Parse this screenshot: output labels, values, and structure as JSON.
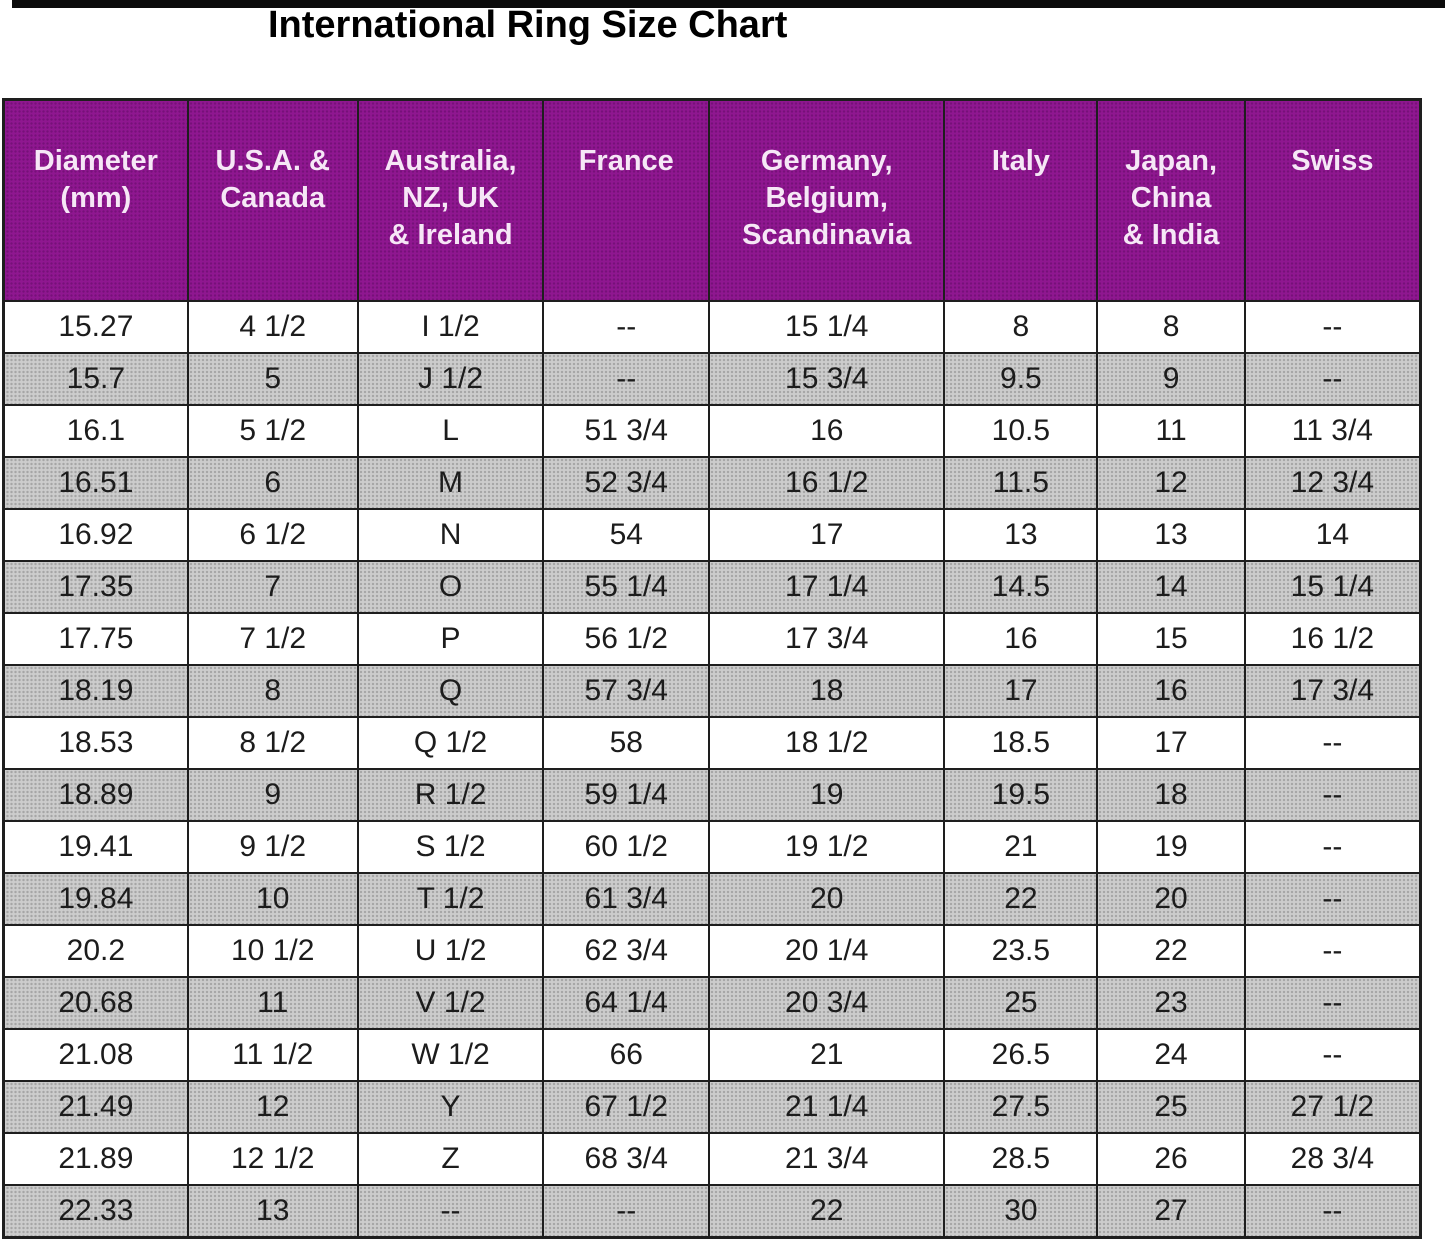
{
  "page": {
    "title": "International Ring Size Chart"
  },
  "colors": {
    "header_bg": "#8f1790",
    "header_text": "#f6e7f6",
    "stripe_bg": "#cccccc",
    "border": "#1e1e1e"
  },
  "table": {
    "columns": [
      {
        "id": "diameter-mm",
        "label": "Diameter\n(mm)"
      },
      {
        "id": "usa-canada",
        "label": "U.S.A. &\nCanada"
      },
      {
        "id": "australia-nz-uk-ireland",
        "label": "Australia,\nNZ, UK\n& Ireland"
      },
      {
        "id": "france",
        "label": "France"
      },
      {
        "id": "germany-belgium-scandinavia",
        "label": "Germany,\nBelgium,\nScandinavia"
      },
      {
        "id": "italy",
        "label": "Italy"
      },
      {
        "id": "japan-china-india",
        "label": "Japan,\nChina\n& India"
      },
      {
        "id": "swiss",
        "label": "Swiss"
      }
    ],
    "rows": [
      [
        "15.27",
        "4 1/2",
        "I 1/2",
        "--",
        "15 1/4",
        "8",
        "8",
        "--"
      ],
      [
        "15.7",
        "5",
        "J 1/2",
        "--",
        "15 3/4",
        "9.5",
        "9",
        "--"
      ],
      [
        "16.1",
        "5 1/2",
        "L",
        "51 3/4",
        "16",
        "10.5",
        "11",
        "11 3/4"
      ],
      [
        "16.51",
        "6",
        "M",
        "52 3/4",
        "16 1/2",
        "11.5",
        "12",
        "12 3/4"
      ],
      [
        "16.92",
        "6 1/2",
        "N",
        "54",
        "17",
        "13",
        "13",
        "14"
      ],
      [
        "17.35",
        "7",
        "O",
        "55 1/4",
        "17 1/4",
        "14.5",
        "14",
        "15 1/4"
      ],
      [
        "17.75",
        "7 1/2",
        "P",
        "56 1/2",
        "17 3/4",
        "16",
        "15",
        "16 1/2"
      ],
      [
        "18.19",
        "8",
        "Q",
        "57 3/4",
        "18",
        "17",
        "16",
        "17 3/4"
      ],
      [
        "18.53",
        "8 1/2",
        "Q 1/2",
        "58",
        "18 1/2",
        "18.5",
        "17",
        "--"
      ],
      [
        "18.89",
        "9",
        "R 1/2",
        "59 1/4",
        "19",
        "19.5",
        "18",
        "--"
      ],
      [
        "19.41",
        "9 1/2",
        "S 1/2",
        "60 1/2",
        "19 1/2",
        "21",
        "19",
        "--"
      ],
      [
        "19.84",
        "10",
        "T 1/2",
        "61 3/4",
        "20",
        "22",
        "20",
        "--"
      ],
      [
        "20.2",
        "10 1/2",
        "U 1/2",
        "62 3/4",
        "20 1/4",
        "23.5",
        "22",
        "--"
      ],
      [
        "20.68",
        "11",
        "V 1/2",
        "64 1/4",
        "20 3/4",
        "25",
        "23",
        "--"
      ],
      [
        "21.08",
        "11 1/2",
        "W 1/2",
        "66",
        "21",
        "26.5",
        "24",
        "--"
      ],
      [
        "21.49",
        "12",
        "Y",
        "67 1/2",
        "21 1/4",
        "27.5",
        "25",
        "27 1/2"
      ],
      [
        "21.89",
        "12 1/2",
        "Z",
        "68 3/4",
        "21 3/4",
        "28.5",
        "26",
        "28 3/4"
      ],
      [
        "22.33",
        "13",
        "--",
        "--",
        "22",
        "30",
        "27",
        "--"
      ]
    ]
  }
}
